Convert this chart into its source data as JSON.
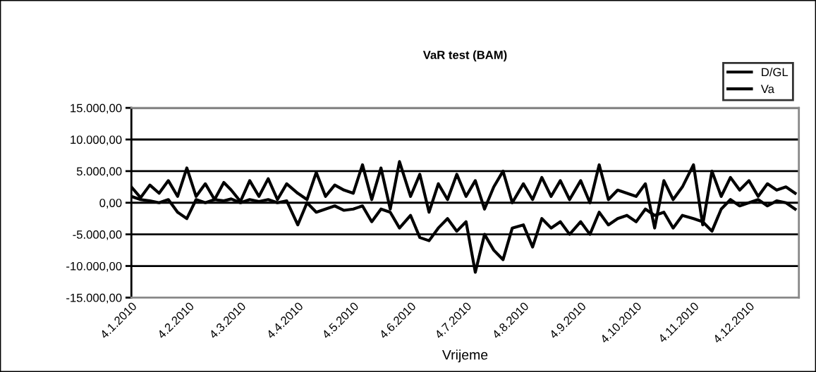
{
  "chart_data": {
    "type": "line",
    "title": "VaR test (BAM)",
    "xlabel": "Vrijeme",
    "x": [
      "2010-01-04",
      "2010-01-09",
      "2010-01-14",
      "2010-01-19",
      "2010-01-24",
      "2010-01-29",
      "2010-02-03",
      "2010-02-08",
      "2010-02-13",
      "2010-02-18",
      "2010-02-23",
      "2010-02-27",
      "2010-03-04",
      "2010-03-09",
      "2010-03-14",
      "2010-03-19",
      "2010-03-24",
      "2010-03-29",
      "2010-04-04",
      "2010-04-09",
      "2010-04-14",
      "2010-04-19",
      "2010-04-24",
      "2010-04-29",
      "2010-05-04",
      "2010-05-09",
      "2010-05-14",
      "2010-05-19",
      "2010-05-24",
      "2010-05-29",
      "2010-06-04",
      "2010-06-09",
      "2010-06-14",
      "2010-06-19",
      "2010-06-24",
      "2010-06-29",
      "2010-07-04",
      "2010-07-09",
      "2010-07-14",
      "2010-07-19",
      "2010-07-24",
      "2010-07-29",
      "2010-08-04",
      "2010-08-09",
      "2010-08-14",
      "2010-08-19",
      "2010-08-24",
      "2010-08-29",
      "2010-09-04",
      "2010-09-09",
      "2010-09-14",
      "2010-09-19",
      "2010-09-24",
      "2010-09-29",
      "2010-10-04",
      "2010-10-09",
      "2010-10-14",
      "2010-10-19",
      "2010-10-24",
      "2010-10-29",
      "2010-11-04",
      "2010-11-09",
      "2010-11-14",
      "2010-11-19",
      "2010-11-24",
      "2010-11-29",
      "2010-12-04",
      "2010-12-09",
      "2010-12-14",
      "2010-12-19",
      "2010-12-24",
      "2010-12-29"
    ],
    "series": [
      {
        "name": "D/GL",
        "color": "#000000",
        "values": [
          2500,
          800,
          2800,
          1500,
          3500,
          1000,
          5500,
          1000,
          3000,
          500,
          3200,
          2000,
          200,
          3500,
          1000,
          3800,
          500,
          3000,
          1500,
          500,
          4800,
          1000,
          2800,
          2000,
          1500,
          6000,
          500,
          5500,
          -1000,
          6500,
          1000,
          4500,
          -1500,
          3000,
          500,
          4500,
          1000,
          3500,
          -1000,
          2500,
          5000,
          0,
          3000,
          500,
          4000,
          1000,
          3500,
          500,
          3500,
          0,
          6000,
          500,
          2000,
          1500,
          1000,
          3000,
          -4000,
          3500,
          500,
          2500,
          6000,
          -3500,
          5000,
          1000,
          4000,
          2000,
          3500,
          1000,
          3000,
          2000,
          2500,
          1500
        ]
      },
      {
        "name": "Va",
        "color": "#000000",
        "values": [
          1000,
          500,
          300,
          0,
          500,
          -1500,
          -2500,
          500,
          0,
          500,
          300,
          600,
          0,
          500,
          200,
          500,
          0,
          300,
          -3500,
          0,
          -1500,
          -1000,
          -500,
          -1200,
          -1000,
          -500,
          -3000,
          -1000,
          -1500,
          -4000,
          -2000,
          -5500,
          -6000,
          -4000,
          -2500,
          -4500,
          -3000,
          -11000,
          -5000,
          -7500,
          -9000,
          -4000,
          -3500,
          -7000,
          -2500,
          -4000,
          -3000,
          -5000,
          -3000,
          -5000,
          -1500,
          -3500,
          -2500,
          -2000,
          -3000,
          -1000,
          -2000,
          -1500,
          -4000,
          -2000,
          -2500,
          -3000,
          -4500,
          -1000,
          500,
          -500,
          0,
          500,
          -500,
          300,
          0,
          -1000
        ]
      }
    ],
    "xlim": [
      "2010-01-04",
      "2010-12-31"
    ],
    "xticks": [
      {
        "value": "2010-01-04",
        "label": "4.1.2010"
      },
      {
        "value": "2010-02-04",
        "label": "4.2.2010"
      },
      {
        "value": "2010-03-04",
        "label": "4.3.2010"
      },
      {
        "value": "2010-04-04",
        "label": "4.4.2010"
      },
      {
        "value": "2010-05-04",
        "label": "4.5.2010"
      },
      {
        "value": "2010-06-04",
        "label": "4.6.2010"
      },
      {
        "value": "2010-07-04",
        "label": "4.7.2010"
      },
      {
        "value": "2010-08-04",
        "label": "4.8.2010"
      },
      {
        "value": "2010-09-04",
        "label": "4.9.2010"
      },
      {
        "value": "2010-10-04",
        "label": "4.10.2010"
      },
      {
        "value": "2010-11-04",
        "label": "4.11.2010"
      },
      {
        "value": "2010-12-04",
        "label": "4.12.2010"
      }
    ],
    "ylim": [
      -15000,
      15000
    ],
    "yticks": [
      {
        "value": -15000,
        "label": "-15.000,00"
      },
      {
        "value": -10000,
        "label": "-10.000,00"
      },
      {
        "value": -5000,
        "label": "-5.000,00"
      },
      {
        "value": 0,
        "label": "0,00"
      },
      {
        "value": 5000,
        "label": "5.000,00"
      },
      {
        "value": 10000,
        "label": "10.000,00"
      },
      {
        "value": 15000,
        "label": "15.000,00"
      }
    ],
    "grid": "y",
    "legend": "top right",
    "marker": "none",
    "line_style": "solid"
  }
}
